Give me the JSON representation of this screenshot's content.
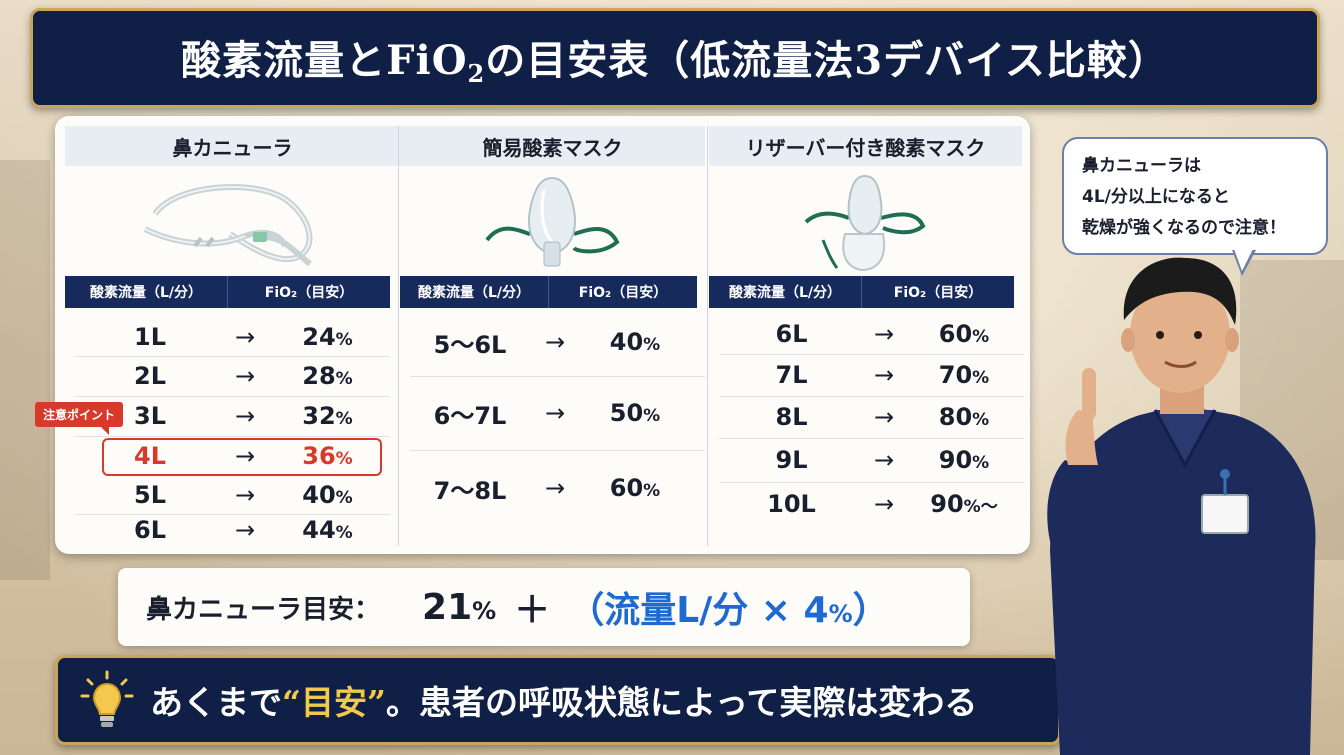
{
  "title": {
    "main": "酸素流量とFiO",
    "sub": "2",
    "rest": "の目安表（低流量法3デバイス比較）"
  },
  "columns": [
    {
      "name": "鼻カニューラ",
      "h_flow": "酸素流量（L/分）",
      "h_fio2": "FiO₂（目安）",
      "rows": [
        {
          "flow": "1L",
          "arrow": "→",
          "fio2": "24",
          "unit": "%"
        },
        {
          "flow": "2L",
          "arrow": "→",
          "fio2": "28",
          "unit": "%"
        },
        {
          "flow": "3L",
          "arrow": "→",
          "fio2": "32",
          "unit": "%"
        },
        {
          "flow": "4L",
          "arrow": "→",
          "fio2": "36",
          "unit": "%"
        },
        {
          "flow": "5L",
          "arrow": "→",
          "fio2": "40",
          "unit": "%"
        },
        {
          "flow": "6L",
          "arrow": "→",
          "fio2": "44",
          "unit": "%"
        }
      ]
    },
    {
      "name": "簡易酸素マスク",
      "h_flow": "酸素流量（L/分）",
      "h_fio2": "FiO₂（目安）",
      "rows": [
        {
          "flow": "5〜6L",
          "arrow": "→",
          "fio2": "40",
          "unit": "%"
        },
        {
          "flow": "6〜7L",
          "arrow": "→",
          "fio2": "50",
          "unit": "%"
        },
        {
          "flow": "7〜8L",
          "arrow": "→",
          "fio2": "60",
          "unit": "%"
        }
      ]
    },
    {
      "name": "リザーバー付き酸素マスク",
      "h_flow": "酸素流量（L/分）",
      "h_fio2": "FiO₂（目安）",
      "rows": [
        {
          "flow": "6L",
          "arrow": "→",
          "fio2": "60",
          "unit": "%"
        },
        {
          "flow": "7L",
          "arrow": "→",
          "fio2": "70",
          "unit": "%"
        },
        {
          "flow": "8L",
          "arrow": "→",
          "fio2": "80",
          "unit": "%"
        },
        {
          "flow": "9L",
          "arrow": "→",
          "fio2": "90",
          "unit": "%"
        },
        {
          "flow": "10L",
          "arrow": "→",
          "fio2": "90",
          "unit": "%〜"
        }
      ]
    }
  ],
  "note_tag": "注意ポイント",
  "formula": {
    "label": "鼻カニューラ目安：",
    "base": "21",
    "base_unit": "%",
    "plus": "＋",
    "open": "（流量L/分 × 4",
    "unit": "%",
    "close": "）"
  },
  "bottom": {
    "pre": "あくまで",
    "emph": "“目安”",
    "post": "。患者の呼吸状態によって実際は変わる"
  },
  "bubble": {
    "lines": [
      "鼻カニューラは",
      "4L/分以上になると",
      "乾燥が強くなるので注意！"
    ]
  },
  "icons": {
    "bottom": "lightbulb-icon"
  },
  "colors": {
    "navy": "#0f1f45",
    "gold": "#c9a55a",
    "warning": "#d73a2b",
    "accent_blue": "#1f6ad0"
  }
}
